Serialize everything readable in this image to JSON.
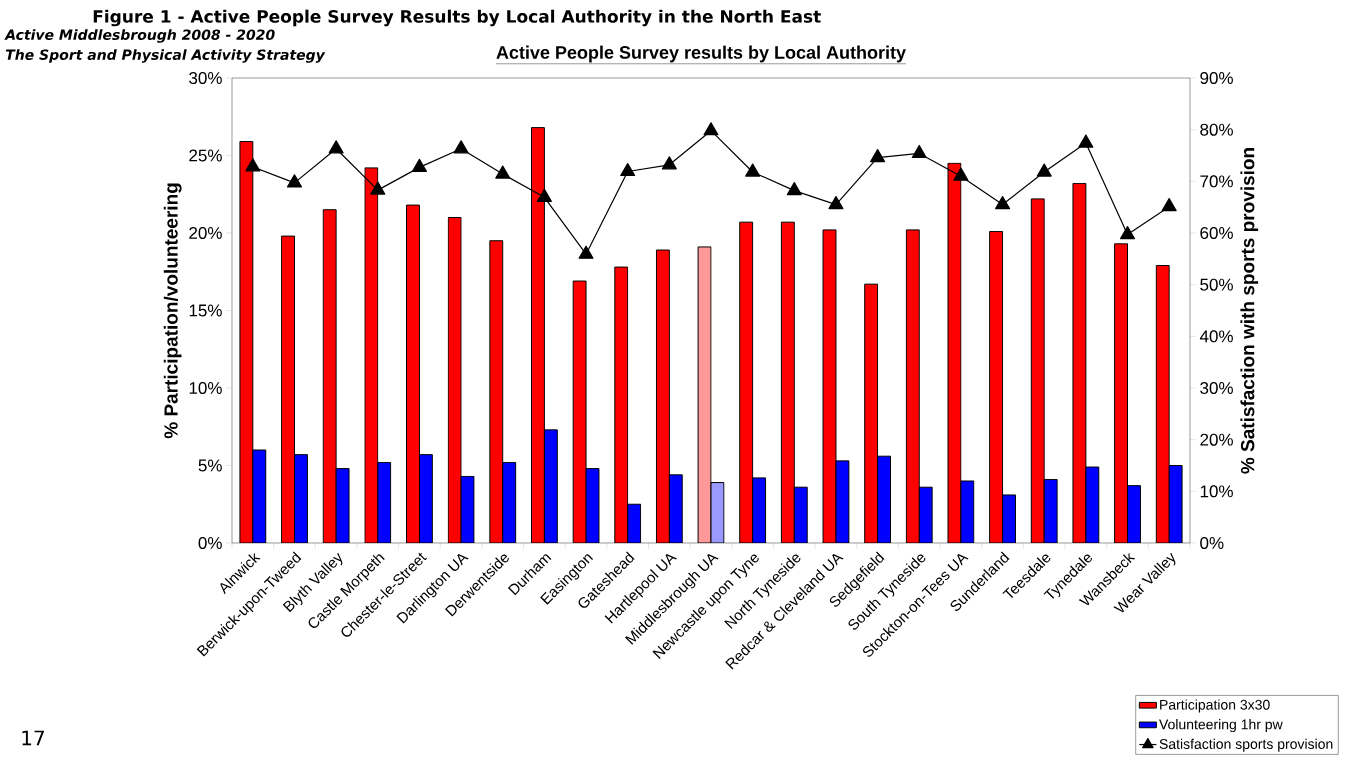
{
  "chart_data": {
    "type": "bar",
    "title": "Figure 1 - Active People Survey Results by Local Authority in the North East",
    "subtitle": "Active People Survey results by Local Authority",
    "ylabel": "% Participation/volunteering",
    "y2label": "% Satisfaction with sports provision",
    "categories": [
      "Alnwick",
      "Berwick-upon-Tweed",
      "Blyth Valley",
      "Castle Morpeth",
      "Chester-le-Street",
      "Darlington UA",
      "Derwentside",
      "Durham",
      "Easington",
      "Gateshead",
      "Hartlepool UA",
      "Middlesbrough UA",
      "Newcastle upon Tyne",
      "North Tyneside",
      "Redcar & Cleveland UA",
      "Sedgefield",
      "South Tyneside",
      "Stockton-on-Tees UA",
      "Sunderland",
      "Teesdale",
      "Tynedale",
      "Wansbeck",
      "Wear Valley"
    ],
    "series": [
      {
        "name": "Participation 3x30",
        "colors": [
          "#ff0000",
          "#ff0000",
          "#ff0000",
          "#ff0000",
          "#ff0000",
          "#ff0000",
          "#ff0000",
          "#ff0000",
          "#ff0000",
          "#ff0000",
          "#ff0000",
          "#ff9999",
          "#ff0000",
          "#ff0000",
          "#ff0000",
          "#ff0000",
          "#ff0000",
          "#ff0000",
          "#ff0000",
          "#ff0000",
          "#ff0000",
          "#ff0000",
          "#ff0000"
        ],
        "values": [
          25.9,
          19.8,
          21.5,
          24.2,
          21.8,
          21.0,
          19.5,
          26.8,
          16.9,
          17.8,
          18.9,
          19.1,
          20.7,
          20.7,
          20.2,
          16.7,
          20.2,
          24.5,
          20.1,
          22.2,
          23.2,
          19.3,
          17.9
        ]
      },
      {
        "name": "Volunteering 1hr pw",
        "colors": [
          "#0000ff",
          "#0000ff",
          "#0000ff",
          "#0000ff",
          "#0000ff",
          "#0000ff",
          "#0000ff",
          "#0000ff",
          "#0000ff",
          "#0000ff",
          "#0000ff",
          "#9999ff",
          "#0000ff",
          "#0000ff",
          "#0000ff",
          "#0000ff",
          "#0000ff",
          "#0000ff",
          "#0000ff",
          "#0000ff",
          "#0000ff",
          "#0000ff",
          "#0000ff"
        ],
        "values": [
          6.0,
          5.7,
          4.8,
          5.2,
          5.7,
          4.3,
          5.2,
          7.3,
          4.8,
          2.5,
          4.4,
          3.9,
          4.2,
          3.6,
          5.3,
          5.6,
          3.6,
          4.0,
          3.1,
          4.1,
          4.9,
          3.7,
          5.0
        ]
      },
      {
        "name": "Satisfaction sports provision",
        "type": "line",
        "axis": "y2",
        "color": "#000000",
        "values": [
          72.8,
          69.7,
          76.3,
          68.3,
          72.7,
          76.3,
          71.4,
          66.9,
          55.9,
          71.9,
          73.2,
          79.8,
          71.8,
          68.2,
          65.5,
          74.6,
          75.4,
          71.0,
          65.5,
          71.8,
          77.4,
          59.7,
          65.1
        ]
      }
    ],
    "ylim": [
      0,
      30
    ],
    "yticks": [
      {
        "value": 0,
        "label": "0%"
      },
      {
        "value": 5,
        "label": "5%"
      },
      {
        "value": 10,
        "label": "10%"
      },
      {
        "value": 15,
        "label": "15%"
      },
      {
        "value": 20,
        "label": "20%"
      },
      {
        "value": 25,
        "label": "25%"
      },
      {
        "value": 30,
        "label": "30%"
      }
    ],
    "y2lim": [
      0,
      90
    ],
    "y2ticks": [
      {
        "value": 0,
        "label": "0%"
      },
      {
        "value": 10,
        "label": "10%"
      },
      {
        "value": 20,
        "label": "20%"
      },
      {
        "value": 30,
        "label": "30%"
      },
      {
        "value": 40,
        "label": "40%"
      },
      {
        "value": 50,
        "label": "50%"
      },
      {
        "value": 60,
        "label": "60%"
      },
      {
        "value": 70,
        "label": "70%"
      },
      {
        "value": 80,
        "label": "80%"
      },
      {
        "value": 90,
        "label": "90%"
      }
    ],
    "marker": "triangle",
    "legend": "bottom right",
    "annotations": [
      "Active Middlesbrough 2008 - 2020",
      "The Sport and Physical Activity Strategy",
      "17"
    ]
  }
}
